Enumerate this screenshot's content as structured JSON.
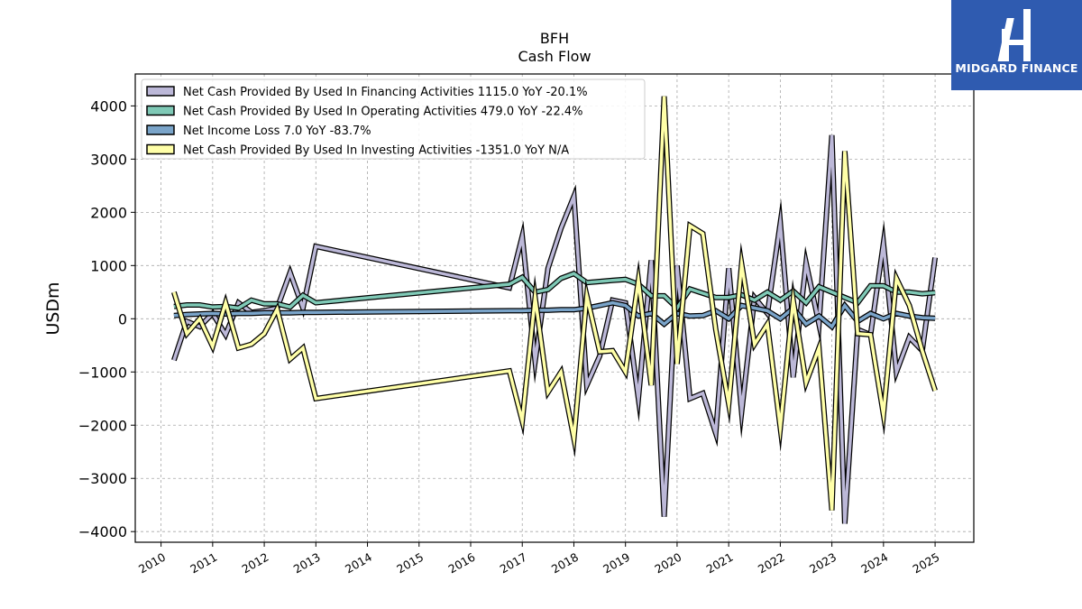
{
  "brand": {
    "name": "MIDGARD FINANCE"
  },
  "chart_data": {
    "type": "line",
    "title": "BFH",
    "subtitle": "Cash Flow",
    "ylabel": "USDm",
    "xlabel": "",
    "ylim": [
      -4200,
      4600
    ],
    "xlim": [
      2009.5,
      2025.75
    ],
    "yticks": [
      -4000,
      -3000,
      -2000,
      -1000,
      0,
      1000,
      2000,
      3000,
      4000
    ],
    "ytick_labels": [
      "−4000",
      "−3000",
      "−2000",
      "−1000",
      "0",
      "1000",
      "2000",
      "3000",
      "4000"
    ],
    "xticks": [
      2010,
      2011,
      2012,
      2013,
      2014,
      2015,
      2016,
      2017,
      2018,
      2019,
      2020,
      2021,
      2022,
      2023,
      2024,
      2025
    ],
    "grid": true,
    "legend_position": "top-left",
    "series": [
      {
        "name": "Net Cash Provided By Used In Financing Activities  1115.0 YoY -20.1%",
        "color": "#bcb8d8",
        "points": [
          [
            2010.25,
            -780
          ],
          [
            2010.5,
            -50
          ],
          [
            2010.75,
            -150
          ],
          [
            2011.0,
            100
          ],
          [
            2011.25,
            -300
          ],
          [
            2011.5,
            300
          ],
          [
            2011.75,
            120
          ],
          [
            2012.0,
            150
          ],
          [
            2012.25,
            200
          ],
          [
            2012.5,
            870
          ],
          [
            2012.75,
            200
          ],
          [
            2013.0,
            1360
          ],
          [
            2016.75,
            580
          ],
          [
            2017.0,
            1550
          ],
          [
            2017.25,
            -800
          ],
          [
            2017.5,
            950
          ],
          [
            2017.75,
            1700
          ],
          [
            2018.0,
            2300
          ],
          [
            2018.25,
            -1250
          ],
          [
            2018.5,
            -700
          ],
          [
            2018.75,
            350
          ],
          [
            2019.0,
            300
          ],
          [
            2019.25,
            -1500
          ],
          [
            2019.5,
            1100
          ],
          [
            2019.75,
            -3720
          ],
          [
            2020.0,
            1000
          ],
          [
            2020.25,
            -1500
          ],
          [
            2020.5,
            -1400
          ],
          [
            2020.75,
            -2150
          ],
          [
            2021.0,
            950
          ],
          [
            2021.25,
            -1750
          ],
          [
            2021.5,
            400
          ],
          [
            2021.75,
            100
          ],
          [
            2022.0,
            1800
          ],
          [
            2022.25,
            -1100
          ],
          [
            2022.5,
            1050
          ],
          [
            2022.75,
            -100
          ],
          [
            2023.0,
            3450
          ],
          [
            2023.25,
            -3850
          ],
          [
            2023.5,
            -200
          ],
          [
            2023.75,
            -300
          ],
          [
            2024.0,
            1420
          ],
          [
            2024.25,
            -1000
          ],
          [
            2024.5,
            -350
          ],
          [
            2024.75,
            -600
          ],
          [
            2025.0,
            1150
          ]
        ]
      },
      {
        "name": "Net Cash Provided By Used In Operating Activities  479.0 YoY -22.4%",
        "color": "#7fc9b6",
        "points": [
          [
            2010.25,
            230
          ],
          [
            2010.5,
            260
          ],
          [
            2010.75,
            260
          ],
          [
            2011.0,
            220
          ],
          [
            2011.25,
            230
          ],
          [
            2011.5,
            200
          ],
          [
            2011.75,
            350
          ],
          [
            2012.0,
            280
          ],
          [
            2012.25,
            280
          ],
          [
            2012.5,
            220
          ],
          [
            2012.75,
            440
          ],
          [
            2013.0,
            300
          ],
          [
            2016.75,
            650
          ],
          [
            2017.0,
            780
          ],
          [
            2017.25,
            500
          ],
          [
            2017.5,
            550
          ],
          [
            2017.75,
            760
          ],
          [
            2018.0,
            850
          ],
          [
            2018.25,
            680
          ],
          [
            2018.5,
            700
          ],
          [
            2018.75,
            720
          ],
          [
            2019.0,
            740
          ],
          [
            2019.25,
            650
          ],
          [
            2019.5,
            430
          ],
          [
            2019.75,
            430
          ],
          [
            2020.0,
            200
          ],
          [
            2020.25,
            560
          ],
          [
            2020.5,
            480
          ],
          [
            2020.75,
            400
          ],
          [
            2021.0,
            400
          ],
          [
            2021.25,
            450
          ],
          [
            2021.5,
            350
          ],
          [
            2021.75,
            500
          ],
          [
            2022.0,
            350
          ],
          [
            2022.25,
            520
          ],
          [
            2022.5,
            300
          ],
          [
            2022.75,
            600
          ],
          [
            2023.0,
            500
          ],
          [
            2023.25,
            400
          ],
          [
            2023.5,
            300
          ],
          [
            2023.75,
            620
          ],
          [
            2024.0,
            620
          ],
          [
            2024.25,
            500
          ],
          [
            2024.5,
            500
          ],
          [
            2024.75,
            470
          ],
          [
            2025.0,
            490
          ]
        ]
      },
      {
        "name": "Net Income Loss  7.0 YoY -83.7%",
        "color": "#7aa4c9",
        "points": [
          [
            2010.25,
            60
          ],
          [
            2010.5,
            80
          ],
          [
            2010.75,
            90
          ],
          [
            2011.0,
            100
          ],
          [
            2011.25,
            90
          ],
          [
            2011.5,
            100
          ],
          [
            2011.75,
            100
          ],
          [
            2012.0,
            110
          ],
          [
            2012.25,
            110
          ],
          [
            2012.5,
            110
          ],
          [
            2012.75,
            120
          ],
          [
            2013.0,
            120
          ],
          [
            2016.75,
            150
          ],
          [
            2017.0,
            150
          ],
          [
            2017.25,
            160
          ],
          [
            2017.5,
            160
          ],
          [
            2017.75,
            170
          ],
          [
            2018.0,
            170
          ],
          [
            2018.25,
            200
          ],
          [
            2018.5,
            250
          ],
          [
            2018.75,
            300
          ],
          [
            2019.0,
            250
          ],
          [
            2019.25,
            50
          ],
          [
            2019.5,
            100
          ],
          [
            2019.75,
            -100
          ],
          [
            2020.0,
            100
          ],
          [
            2020.25,
            50
          ],
          [
            2020.5,
            60
          ],
          [
            2020.75,
            150
          ],
          [
            2021.0,
            0
          ],
          [
            2021.25,
            250
          ],
          [
            2021.5,
            200
          ],
          [
            2021.75,
            150
          ],
          [
            2022.0,
            0
          ],
          [
            2022.25,
            200
          ],
          [
            2022.5,
            -100
          ],
          [
            2022.75,
            50
          ],
          [
            2023.0,
            -150
          ],
          [
            2023.25,
            250
          ],
          [
            2023.5,
            -50
          ],
          [
            2023.75,
            100
          ],
          [
            2024.0,
            0
          ],
          [
            2024.25,
            100
          ],
          [
            2024.5,
            50
          ],
          [
            2024.75,
            20
          ],
          [
            2025.0,
            10
          ]
        ]
      },
      {
        "name": "Net Cash Provided By Used In Investing Activities  -1351.0 YoY N/A",
        "color": "#ffffa8",
        "points": [
          [
            2010.25,
            500
          ],
          [
            2010.5,
            -280
          ],
          [
            2010.75,
            0
          ],
          [
            2011.0,
            -520
          ],
          [
            2011.25,
            300
          ],
          [
            2011.5,
            -550
          ],
          [
            2011.75,
            -480
          ],
          [
            2012.0,
            -280
          ],
          [
            2012.25,
            180
          ],
          [
            2012.5,
            -760
          ],
          [
            2012.75,
            -550
          ],
          [
            2013.0,
            -1500
          ],
          [
            2016.75,
            -980
          ],
          [
            2017.0,
            -1920
          ],
          [
            2017.25,
            400
          ],
          [
            2017.5,
            -1380
          ],
          [
            2017.75,
            -1000
          ],
          [
            2018.0,
            -2250
          ],
          [
            2018.25,
            430
          ],
          [
            2018.5,
            -620
          ],
          [
            2018.75,
            -600
          ],
          [
            2019.0,
            -1000
          ],
          [
            2019.25,
            720
          ],
          [
            2019.5,
            -1250
          ],
          [
            2019.75,
            4180
          ],
          [
            2020.0,
            -850
          ],
          [
            2020.25,
            1750
          ],
          [
            2020.5,
            1600
          ],
          [
            2020.75,
            -200
          ],
          [
            2021.0,
            -1600
          ],
          [
            2021.25,
            1030
          ],
          [
            2021.5,
            -480
          ],
          [
            2021.75,
            -100
          ],
          [
            2022.0,
            -2050
          ],
          [
            2022.25,
            350
          ],
          [
            2022.5,
            -1200
          ],
          [
            2022.75,
            -550
          ],
          [
            2023.0,
            -3600
          ],
          [
            2023.25,
            3150
          ],
          [
            2023.5,
            -280
          ],
          [
            2023.75,
            -300
          ],
          [
            2024.0,
            -1800
          ],
          [
            2024.25,
            760
          ],
          [
            2024.5,
            250
          ],
          [
            2024.75,
            -600
          ],
          [
            2025.0,
            -1350
          ]
        ]
      }
    ]
  }
}
